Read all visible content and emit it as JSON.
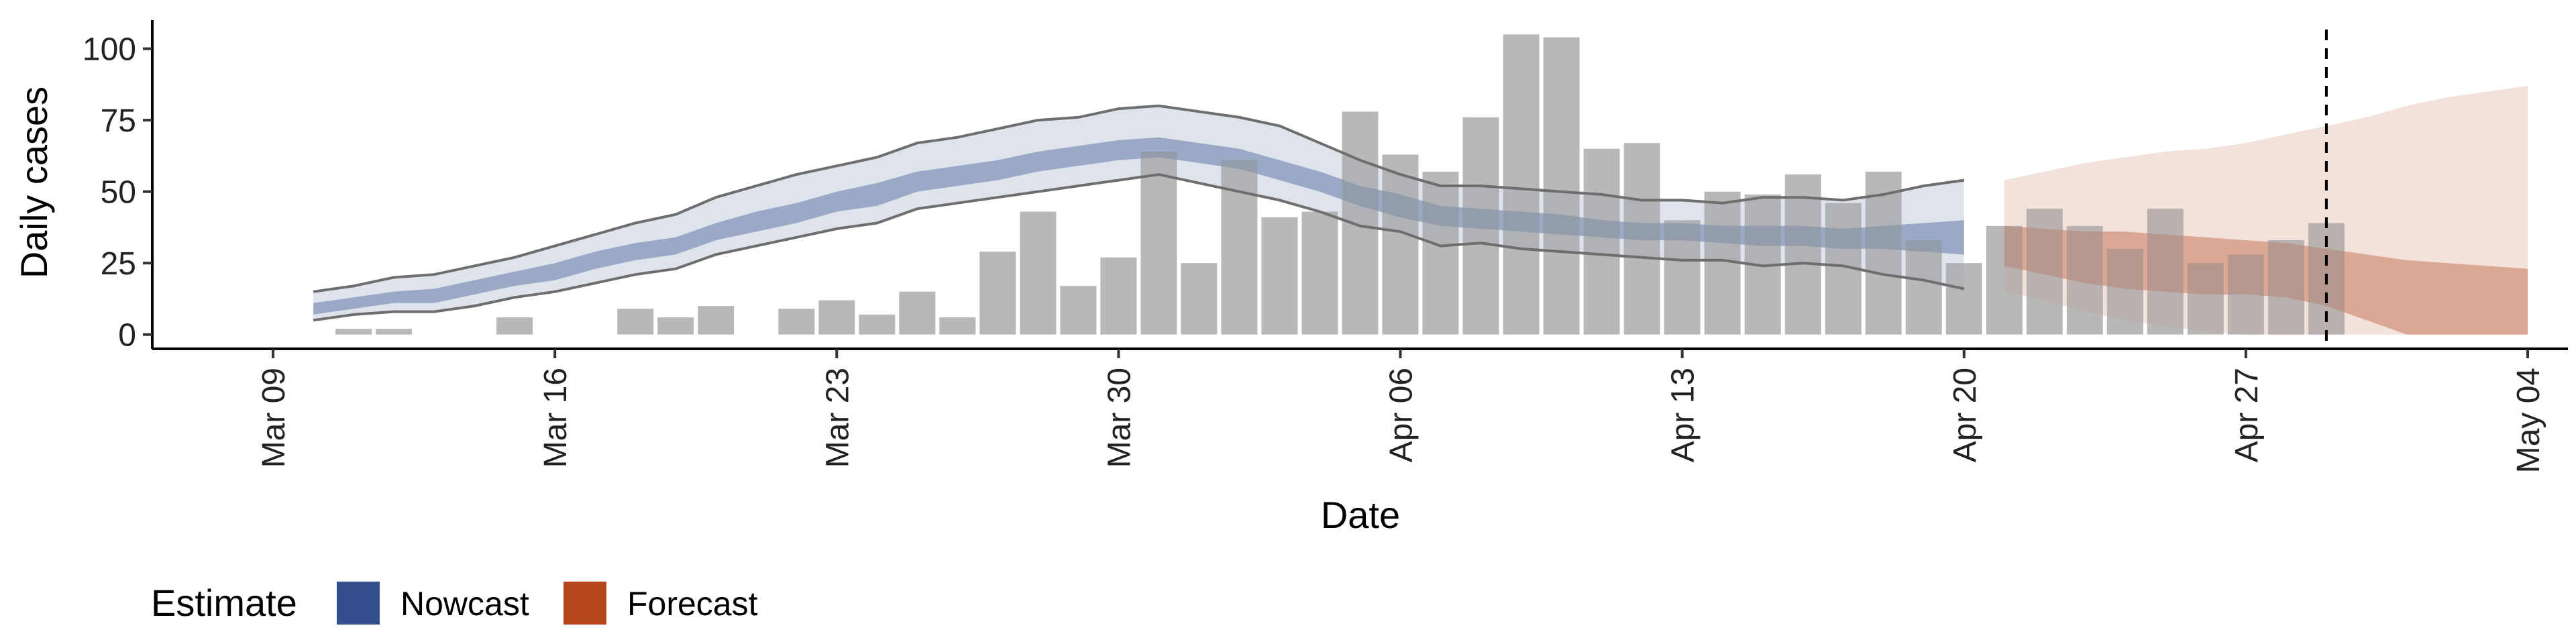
{
  "chart_data": {
    "type": "bar",
    "xlabel": "Date",
    "ylabel": "Daily cases",
    "ylim": [
      -5,
      110
    ],
    "xlim": [
      "2020-03-06",
      "2020-05-05"
    ],
    "y_ticks": [
      0,
      25,
      50,
      75,
      100
    ],
    "x_ticks": [
      {
        "date": "2020-03-09",
        "label": "Mar 09"
      },
      {
        "date": "2020-03-16",
        "label": "Mar 16"
      },
      {
        "date": "2020-03-23",
        "label": "Mar 23"
      },
      {
        "date": "2020-03-30",
        "label": "Mar 30"
      },
      {
        "date": "2020-04-06",
        "label": "Apr 06"
      },
      {
        "date": "2020-04-13",
        "label": "Apr 13"
      },
      {
        "date": "2020-04-20",
        "label": "Apr 20"
      },
      {
        "date": "2020-04-27",
        "label": "Apr 27"
      },
      {
        "date": "2020-05-04",
        "label": "May 04"
      }
    ],
    "bars": {
      "color": "#b8b8b8",
      "dates": [
        "2020-03-11",
        "2020-03-12",
        "2020-03-15",
        "2020-03-18",
        "2020-03-19",
        "2020-03-20",
        "2020-03-22",
        "2020-03-23",
        "2020-03-24",
        "2020-03-25",
        "2020-03-26",
        "2020-03-27",
        "2020-03-28",
        "2020-03-29",
        "2020-03-30",
        "2020-03-31",
        "2020-04-01",
        "2020-04-02",
        "2020-04-03",
        "2020-04-04",
        "2020-04-05",
        "2020-04-06",
        "2020-04-07",
        "2020-04-08",
        "2020-04-09",
        "2020-04-10",
        "2020-04-11",
        "2020-04-12",
        "2020-04-13",
        "2020-04-14",
        "2020-04-15",
        "2020-04-16",
        "2020-04-17",
        "2020-04-18",
        "2020-04-19",
        "2020-04-20",
        "2020-04-21",
        "2020-04-22",
        "2020-04-23",
        "2020-04-24",
        "2020-04-25",
        "2020-04-26",
        "2020-04-27",
        "2020-04-28",
        "2020-04-29"
      ],
      "values": [
        2,
        2,
        6,
        9,
        6,
        10,
        9,
        12,
        7,
        15,
        6,
        29,
        43,
        17,
        27,
        64,
        25,
        61,
        41,
        43,
        78,
        63,
        57,
        76,
        105,
        104,
        65,
        67,
        40,
        50,
        49,
        56,
        46,
        57,
        33,
        25,
        38,
        44,
        38,
        30,
        44,
        25,
        28,
        33,
        39
      ]
    },
    "series": [
      {
        "name": "Nowcast",
        "color": "#34508c",
        "dates": [
          "2020-03-10",
          "2020-03-11",
          "2020-03-12",
          "2020-03-13",
          "2020-03-14",
          "2020-03-15",
          "2020-03-16",
          "2020-03-17",
          "2020-03-18",
          "2020-03-19",
          "2020-03-20",
          "2020-03-21",
          "2020-03-22",
          "2020-03-23",
          "2020-03-24",
          "2020-03-25",
          "2020-03-26",
          "2020-03-27",
          "2020-03-28",
          "2020-03-29",
          "2020-03-30",
          "2020-03-31",
          "2020-04-01",
          "2020-04-02",
          "2020-04-03",
          "2020-04-04",
          "2020-04-05",
          "2020-04-06",
          "2020-04-07",
          "2020-04-08",
          "2020-04-09",
          "2020-04-10",
          "2020-04-11",
          "2020-04-12",
          "2020-04-13",
          "2020-04-14",
          "2020-04-15",
          "2020-04-16",
          "2020-04-17",
          "2020-04-18",
          "2020-04-19",
          "2020-04-20"
        ],
        "outer_upper": [
          15,
          17,
          20,
          21,
          24,
          27,
          31,
          35,
          39,
          42,
          48,
          52,
          56,
          59,
          62,
          67,
          69,
          72,
          75,
          76,
          79,
          80,
          78,
          76,
          73,
          67,
          61,
          56,
          52,
          52,
          51,
          50,
          49,
          47,
          47,
          46,
          48,
          48,
          47,
          49,
          52,
          54
        ],
        "outer_lower": [
          5,
          7,
          8,
          8,
          10,
          13,
          15,
          18,
          21,
          23,
          28,
          31,
          34,
          37,
          39,
          44,
          46,
          48,
          50,
          52,
          54,
          56,
          53,
          50,
          47,
          43,
          38,
          36,
          31,
          32,
          30,
          29,
          28,
          27,
          26,
          26,
          24,
          25,
          24,
          21,
          19,
          16
        ],
        "inner_upper": [
          11,
          13,
          15,
          16,
          19,
          22,
          25,
          29,
          32,
          34,
          39,
          43,
          46,
          50,
          53,
          57,
          59,
          61,
          64,
          66,
          68,
          69,
          67,
          65,
          61,
          57,
          52,
          49,
          45,
          44,
          43,
          42,
          40,
          39,
          39,
          38,
          38,
          38,
          37,
          38,
          39,
          40
        ],
        "inner_lower": [
          7,
          9,
          11,
          11,
          14,
          17,
          19,
          23,
          26,
          28,
          33,
          36,
          39,
          43,
          45,
          50,
          52,
          54,
          57,
          59,
          61,
          62,
          60,
          58,
          54,
          50,
          45,
          41,
          38,
          37,
          36,
          35,
          34,
          33,
          33,
          32,
          31,
          31,
          30,
          30,
          29,
          28
        ]
      },
      {
        "name": "Forecast",
        "color": "#b5451b",
        "dates": [
          "2020-04-21",
          "2020-04-22",
          "2020-04-23",
          "2020-04-24",
          "2020-04-25",
          "2020-04-26",
          "2020-04-27",
          "2020-04-28",
          "2020-04-29",
          "2020-04-30",
          "2020-05-01",
          "2020-05-02",
          "2020-05-03",
          "2020-05-04"
        ],
        "outer_upper": [
          54,
          57,
          60,
          62,
          64,
          65,
          67,
          70,
          73,
          76,
          80,
          83,
          85,
          87
        ],
        "outer_lower": [
          15,
          12,
          8,
          5,
          3,
          1,
          0,
          0,
          0,
          0,
          0,
          0,
          0,
          0
        ],
        "inner_upper": [
          38,
          37,
          36,
          36,
          35,
          34,
          33,
          32,
          30,
          28,
          26,
          25,
          24,
          23
        ],
        "inner_lower": [
          24,
          21,
          18,
          16,
          15,
          14,
          14,
          13,
          10,
          5,
          0,
          0,
          0,
          0
        ]
      }
    ],
    "vline_date": "2020-04-29",
    "legend": {
      "title": "Estimate",
      "position": "bottom-left",
      "items": [
        {
          "label": "Nowcast",
          "color": "#34508c"
        },
        {
          "label": "Forecast",
          "color": "#b5451b"
        }
      ]
    }
  }
}
